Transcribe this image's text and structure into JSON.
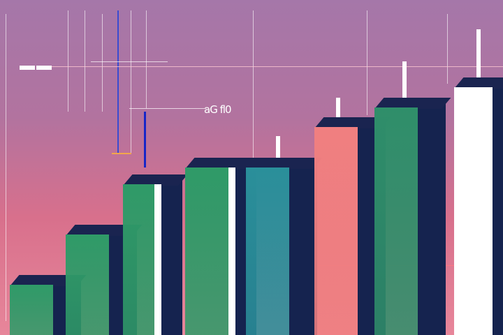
{
  "chart_data": {
    "type": "bar",
    "title": "",
    "xlabel": "",
    "ylabel": "",
    "annotation": "aG fl0",
    "grid": true,
    "values": [
      15,
      30,
      45,
      50,
      50,
      62,
      68,
      74
    ],
    "ylim": [
      0,
      100
    ],
    "bar_colors": [
      "#2f9a68",
      "#2f9a68",
      "#2f9a68",
      "#2f9a68",
      "#2a8f9a",
      "#f07f80",
      "#2f8e6a",
      "#ffffff"
    ],
    "side_color": "#15234f",
    "top_color": "#1a2450"
  }
}
